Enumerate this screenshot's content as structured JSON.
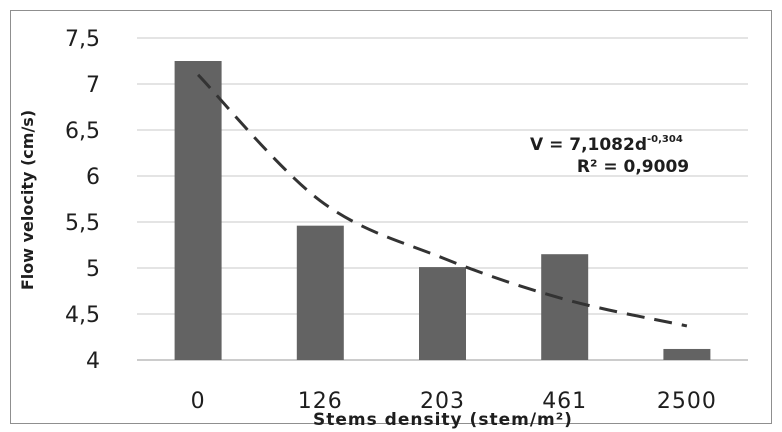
{
  "chart_data": {
    "type": "bar",
    "categories": [
      "0",
      "126",
      "203",
      "461",
      "2500"
    ],
    "values": [
      7.25,
      5.46,
      5.01,
      5.15,
      4.12
    ],
    "xlabel": "Stems density (stem/m²)",
    "ylabel": "Flow velocity (cm/s)",
    "ylim": [
      4,
      7.5
    ],
    "y_ticks": [
      "4",
      "4,5",
      "5",
      "5,5",
      "6",
      "6,5",
      "7",
      "7,5"
    ],
    "grid": "horizontal",
    "bar_color": "#636363",
    "trendline": {
      "type": "power",
      "style": "dashed",
      "equation_prefix": "V = 7,1082d",
      "equation_exponent": "-0,304",
      "r2_label": "R² = 0,9009",
      "values": [
        7.1,
        5.73,
        5.11,
        4.66,
        4.37
      ]
    }
  }
}
